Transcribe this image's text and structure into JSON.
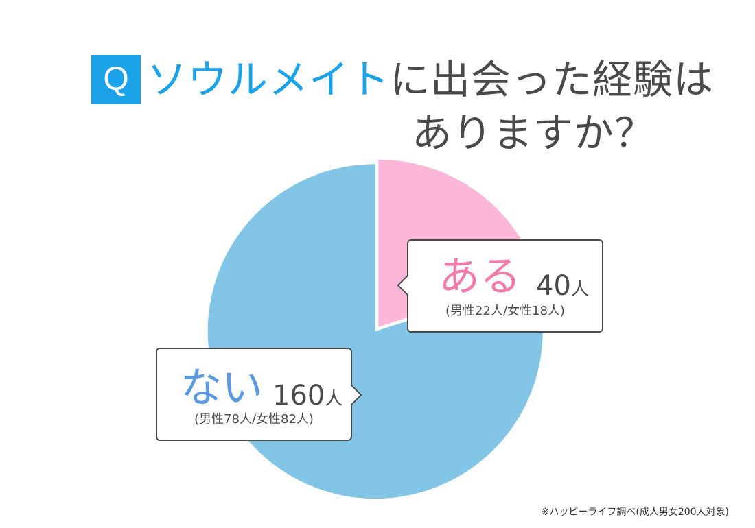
{
  "header": {
    "badge": "Q",
    "title_accent": "ソウルメイト",
    "title_rest": "に出会った経験は",
    "title_line2": "ありますか？"
  },
  "chart_data": {
    "type": "pie",
    "categories": [
      "ある",
      "ない"
    ],
    "values": [
      40,
      160
    ],
    "unit": "人",
    "breakdowns": [
      "(男性22人/女性18人)",
      "(男性78人/女性82人)"
    ],
    "colors": [
      "#fcb7d8",
      "#82c5e6"
    ],
    "start": "12 o'clock",
    "direction": "clockwise",
    "legend": "callouts"
  },
  "callouts": {
    "aru": {
      "label": "ある",
      "count": "40",
      "unit": "人",
      "breakdown": "(男性22人/女性18人)",
      "color": "#f27aa9"
    },
    "nai": {
      "label": "ない",
      "count": "160",
      "unit": "人",
      "breakdown": "(男性78人/女性82人)",
      "color": "#5b9ae0"
    }
  },
  "footnote": "※ハッピーライフ調べ(成人男女200人対象)"
}
